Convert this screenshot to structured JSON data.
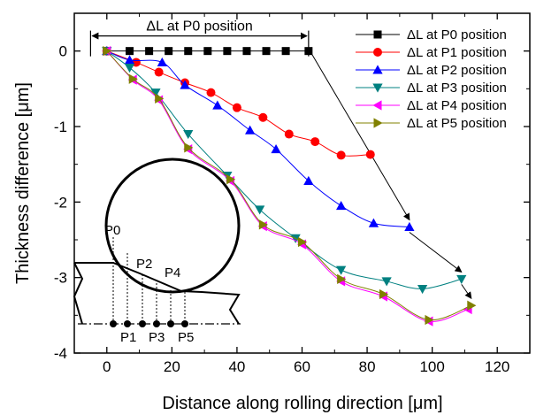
{
  "chart_data": {
    "type": "line",
    "title": "",
    "xlabel": "Distance along rolling direction [μm]",
    "ylabel": "Thickness difference [μm]",
    "xlim": [
      -10,
      130
    ],
    "ylim": [
      -4,
      0.5
    ],
    "xticks": [
      "0",
      "20",
      "40",
      "60",
      "80",
      "100",
      "120"
    ],
    "yticks": [
      "0",
      "-1",
      "-2",
      "-3",
      "-4"
    ],
    "grid": false,
    "legend_position": "top-right",
    "series": [
      {
        "name": "ΔL at P0 position",
        "color": "#000000",
        "marker": "square",
        "x": [
          0,
          7,
          13,
          19,
          25,
          31,
          37,
          43,
          49,
          55,
          62
        ],
        "y": [
          0,
          0,
          0,
          0,
          0,
          0,
          0,
          0,
          0,
          0,
          0
        ]
      },
      {
        "name": "ΔL at P1 position",
        "color": "#ff0000",
        "marker": "circle",
        "x": [
          0,
          9,
          16,
          24,
          32,
          40,
          48,
          56,
          64,
          72,
          81
        ],
        "y": [
          0,
          -0.15,
          -0.28,
          -0.42,
          -0.55,
          -0.75,
          -0.88,
          -1.1,
          -1.2,
          -1.38,
          -1.37
        ]
      },
      {
        "name": "ΔL at P2 position",
        "color": "#0000ff",
        "marker": "triangle-up",
        "x": [
          0,
          7,
          17,
          24,
          34,
          44,
          52,
          62,
          72,
          82,
          93
        ],
        "y": [
          0,
          -0.12,
          -0.15,
          -0.45,
          -0.72,
          -1.05,
          -1.3,
          -1.72,
          -2.05,
          -2.28,
          -2.33
        ]
      },
      {
        "name": "ΔL at P3 position",
        "color": "#008080",
        "marker": "triangle-down",
        "x": [
          0,
          7,
          15,
          25,
          37,
          47,
          58,
          72,
          86,
          97,
          109
        ],
        "y": [
          0,
          -0.22,
          -0.55,
          -1.1,
          -1.65,
          -2.1,
          -2.48,
          -2.9,
          -3.05,
          -3.15,
          -3.02
        ]
      },
      {
        "name": "ΔL at P4 position",
        "color": "#ff00ff",
        "marker": "triangle-left",
        "x": [
          0,
          8,
          16,
          25,
          38,
          48,
          60,
          72,
          85,
          99,
          111
        ],
        "y": [
          0,
          -0.38,
          -0.65,
          -1.3,
          -1.72,
          -2.32,
          -2.56,
          -3.05,
          -3.25,
          -3.58,
          -3.42
        ]
      },
      {
        "name": "ΔL at P5 position",
        "color": "#808000",
        "marker": "triangle-right",
        "x": [
          0,
          8,
          16,
          25,
          38,
          48,
          60,
          72,
          85,
          99,
          112
        ],
        "y": [
          0,
          -0.37,
          -0.63,
          -1.28,
          -1.7,
          -2.3,
          -2.53,
          -3.02,
          -3.22,
          -3.56,
          -3.37
        ]
      }
    ],
    "annotations": {
      "span_label": "ΔL at P0 position",
      "span_x": [
        -5,
        62
      ],
      "span_y": 0.2,
      "inset_labels": [
        "P0",
        "P1",
        "P2",
        "P3",
        "P4",
        "P5"
      ]
    }
  }
}
